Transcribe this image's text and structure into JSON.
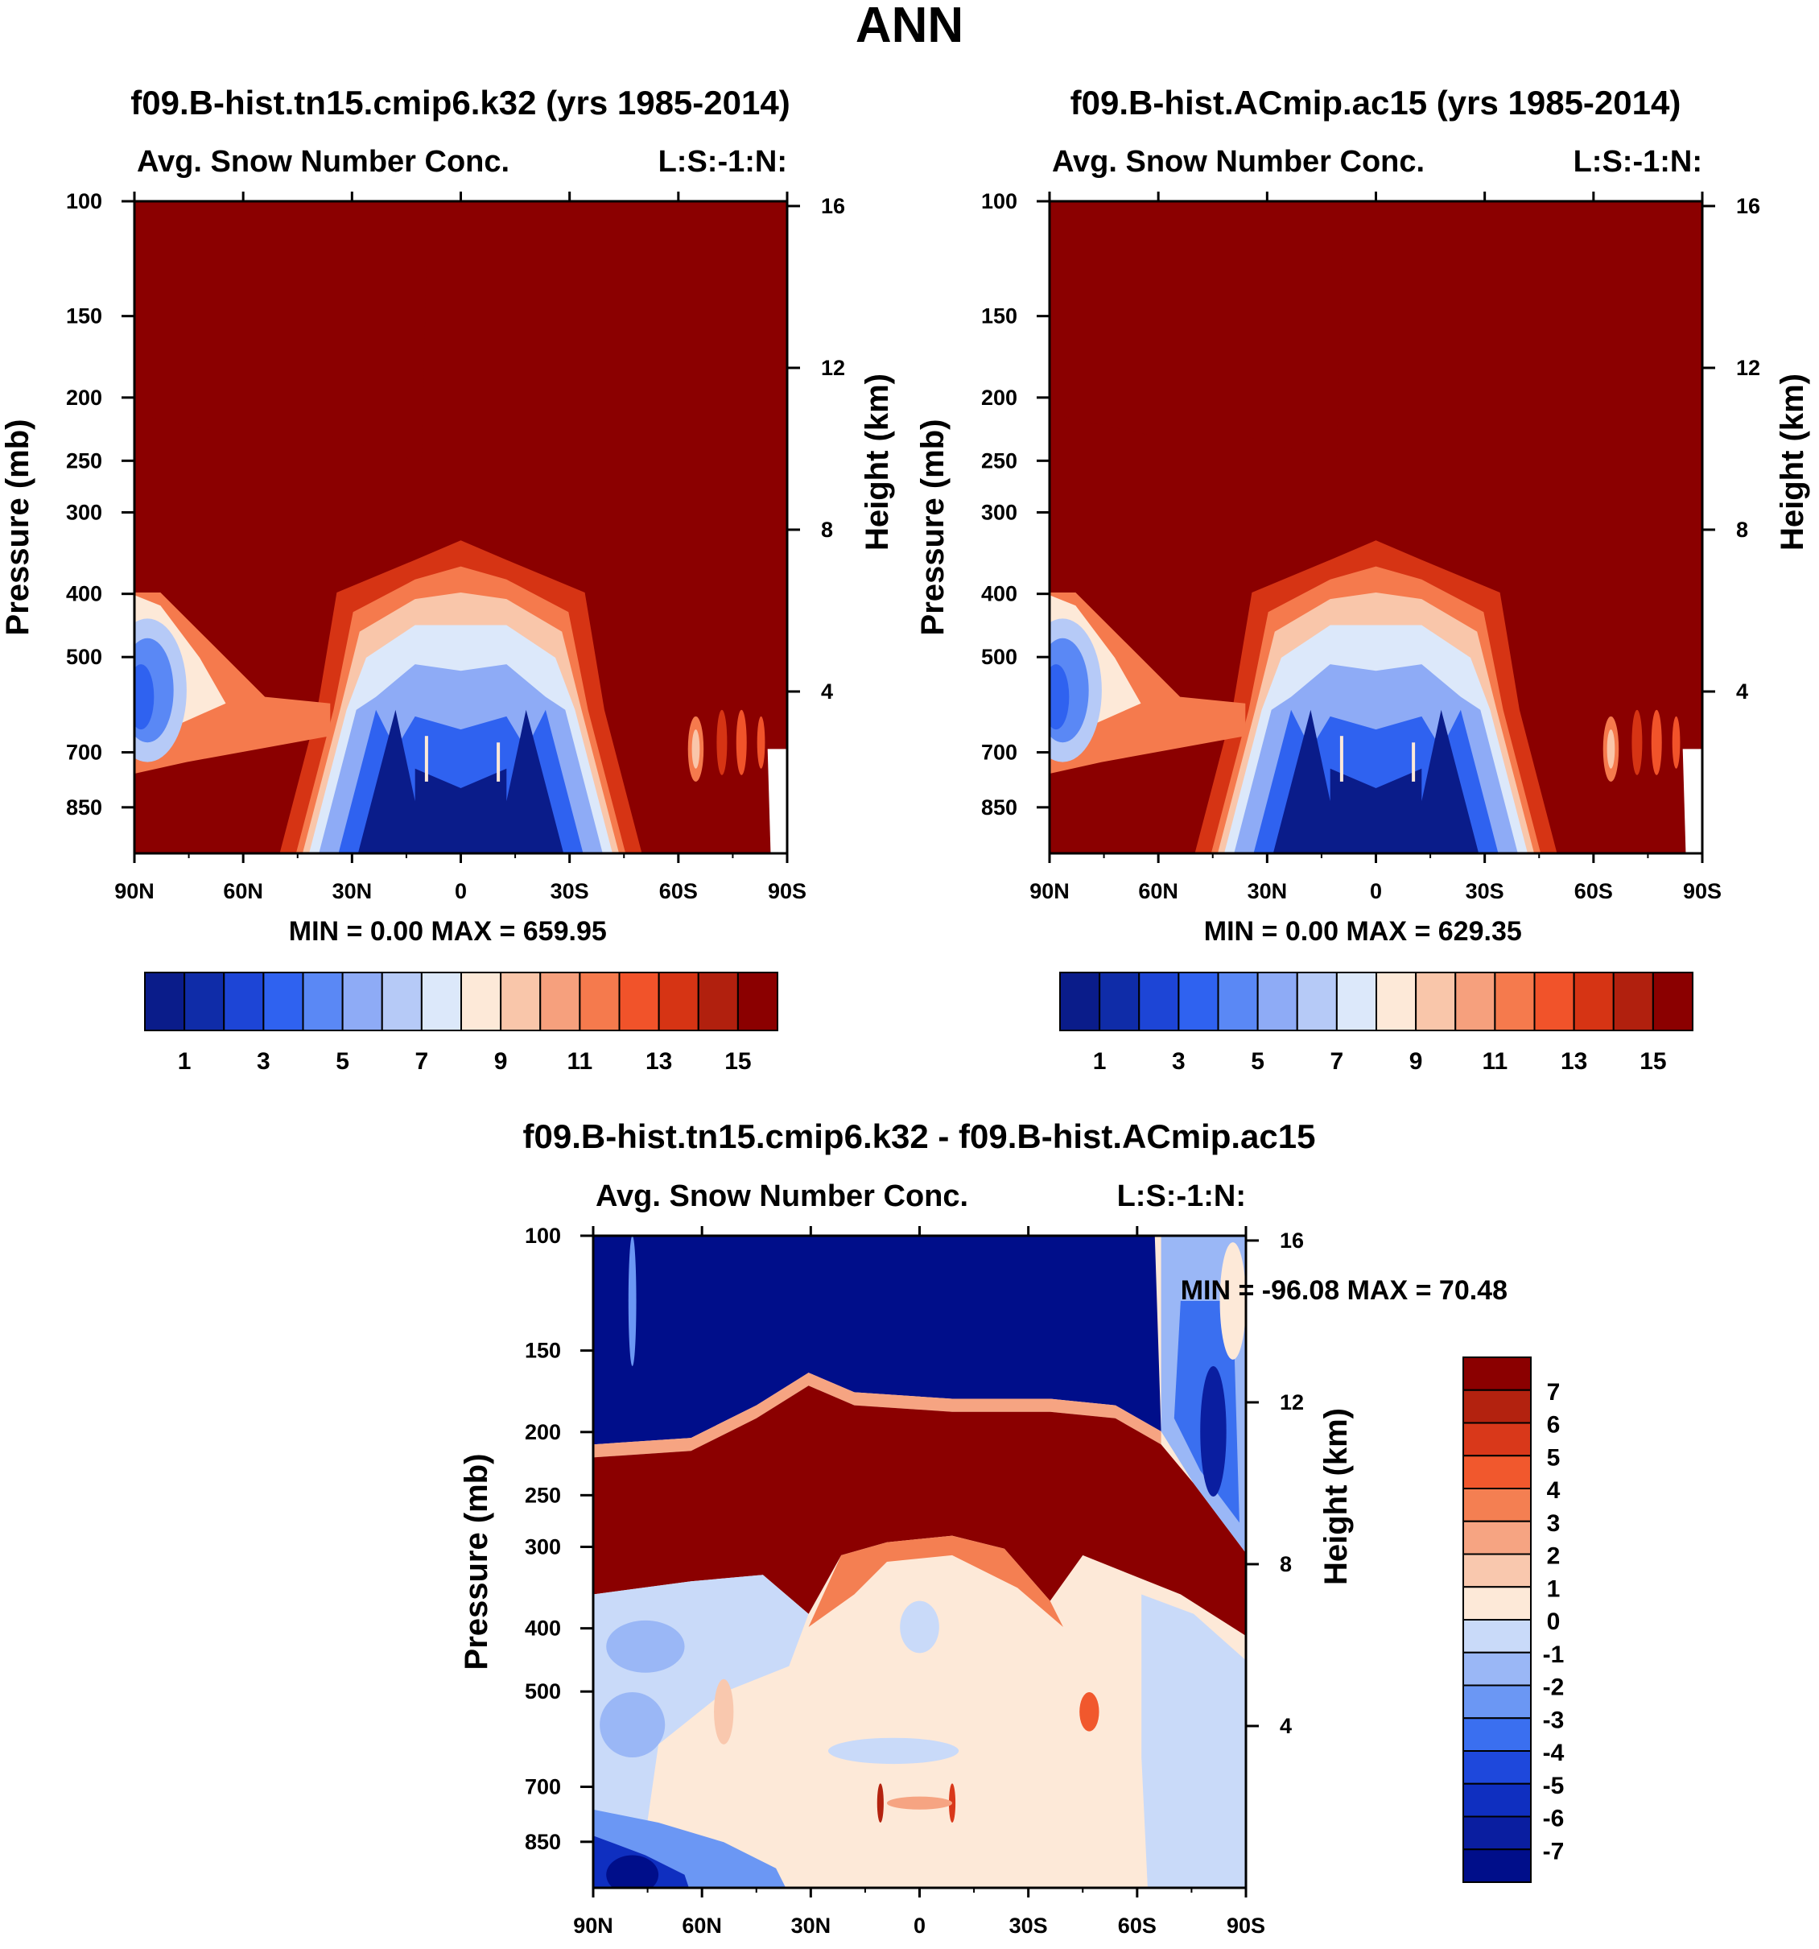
{
  "page_title": "ANN",
  "chart_data": [
    {
      "type": "contour",
      "title": "f09.B-hist.tn15.cmip6.k32 (yrs 1985-2014)",
      "subtitle_left": "Avg. Snow Number Conc.",
      "subtitle_right": "L:S:-1:N:",
      "xlabel": "",
      "ylabel": "Pressure (mb)",
      "y2label": "Height (km)",
      "x_ticks": [
        "90N",
        "60N",
        "30N",
        "0",
        "30S",
        "60S",
        "90S"
      ],
      "y_ticks": [
        "100",
        "150",
        "200",
        "250",
        "300",
        "400",
        "500",
        "700",
        "850"
      ],
      "y_tick_values": [
        100,
        150,
        200,
        250,
        300,
        400,
        500,
        700,
        850
      ],
      "ylim": [
        100,
        1000
      ],
      "y_scale": "log",
      "y2_ticks": [
        "16",
        "12",
        "8",
        "4"
      ],
      "y2_tick_values": [
        16,
        12,
        8,
        4
      ],
      "stats": "MIN =    0.00   MAX = 659.95",
      "colorbar_orientation": "horizontal",
      "colorbar_labels": [
        "1",
        "3",
        "5",
        "7",
        "9",
        "11",
        "13",
        "15"
      ],
      "colorbar_label_values": [
        1,
        3,
        5,
        7,
        9,
        11,
        13,
        15
      ]
    },
    {
      "type": "contour",
      "title": "f09.B-hist.ACmip.ac15 (yrs 1985-2014)",
      "subtitle_left": "Avg. Snow Number Conc.",
      "subtitle_right": "L:S:-1:N:",
      "xlabel": "",
      "ylabel": "Pressure (mb)",
      "y2label": "Height (km)",
      "x_ticks": [
        "90N",
        "60N",
        "30N",
        "0",
        "30S",
        "60S",
        "90S"
      ],
      "y_ticks": [
        "100",
        "150",
        "200",
        "250",
        "300",
        "400",
        "500",
        "700",
        "850"
      ],
      "y_tick_values": [
        100,
        150,
        200,
        250,
        300,
        400,
        500,
        700,
        850
      ],
      "ylim": [
        100,
        1000
      ],
      "y_scale": "log",
      "y2_ticks": [
        "16",
        "12",
        "8",
        "4"
      ],
      "y2_tick_values": [
        16,
        12,
        8,
        4
      ],
      "stats": "MIN =    0.00   MAX = 629.35",
      "colorbar_orientation": "horizontal",
      "colorbar_labels": [
        "1",
        "3",
        "5",
        "7",
        "9",
        "11",
        "13",
        "15"
      ],
      "colorbar_label_values": [
        1,
        3,
        5,
        7,
        9,
        11,
        13,
        15
      ]
    },
    {
      "type": "contour",
      "title": "f09.B-hist.tn15.cmip6.k32 - f09.B-hist.ACmip.ac15",
      "subtitle_left": "Avg. Snow Number Conc.",
      "subtitle_right": "L:S:-1:N:",
      "xlabel": "",
      "ylabel": "Pressure (mb)",
      "y2label": "Height (km)",
      "x_ticks": [
        "90N",
        "60N",
        "30N",
        "0",
        "30S",
        "60S",
        "90S"
      ],
      "y_ticks": [
        "100",
        "150",
        "200",
        "250",
        "300",
        "400",
        "500",
        "700",
        "850"
      ],
      "y_tick_values": [
        100,
        150,
        200,
        250,
        300,
        400,
        500,
        700,
        850
      ],
      "ylim": [
        100,
        1000
      ],
      "y_scale": "log",
      "y2_ticks": [
        "16",
        "12",
        "8",
        "4"
      ],
      "y2_tick_values": [
        16,
        12,
        8,
        4
      ],
      "stats": "MIN = -96.08  MAX =  70.48",
      "colorbar_orientation": "vertical",
      "colorbar_labels": [
        "7",
        "6",
        "5",
        "4",
        "3",
        "2",
        "1",
        "0",
        "-1",
        "-2",
        "-3",
        "-4",
        "-5",
        "-6",
        "-7"
      ],
      "colorbar_label_values": [
        7,
        6,
        5,
        4,
        3,
        2,
        1,
        0,
        -1,
        -2,
        -3,
        -4,
        -5,
        -6,
        -7
      ]
    }
  ],
  "colors": {
    "abs_scale": [
      "#0a1c8a",
      "#0f2ca8",
      "#1d45d6",
      "#2f62f0",
      "#5a88f5",
      "#8eabf6",
      "#b6caf7",
      "#dce8fa",
      "#fde9d8",
      "#f9c6aa",
      "#f6a07d",
      "#f57a4d",
      "#f1532a",
      "#d63414",
      "#b1200e",
      "#8b0000"
    ],
    "diff_scale": [
      "#000e8a",
      "#0a1ea0",
      "#0f2fc0",
      "#1e48dc",
      "#3a6ff0",
      "#6b97f4",
      "#9ab7f6",
      "#c9daf9",
      "#fde9d8",
      "#f9c8ae",
      "#f6a482",
      "#f47f52",
      "#f1582d",
      "#d9381a",
      "#b3220f",
      "#8b0000"
    ],
    "frame": "#000000"
  }
}
